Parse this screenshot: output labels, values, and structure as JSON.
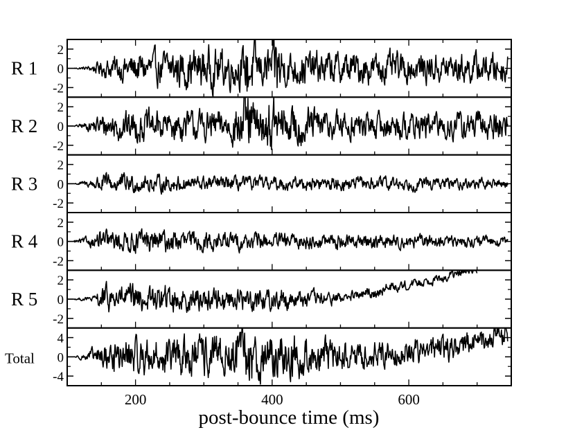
{
  "chart_data": {
    "type": "line",
    "xlabel": "post-bounce time (ms)",
    "xlim": [
      100,
      750
    ],
    "x_ticks": [
      200,
      400,
      600
    ],
    "x_minor_step": 50,
    "grid": false,
    "line_color": "#000000",
    "panels": [
      {
        "name": "R 1",
        "ylim": [
          -3,
          3
        ],
        "y_ticks": [
          -2,
          0,
          2
        ],
        "y_tick_labels": [
          "-2",
          "0",
          "2"
        ],
        "x": [
          110,
          130,
          150,
          170,
          200,
          230,
          260,
          280,
          300,
          320,
          340,
          360,
          363,
          380,
          400,
          405,
          420,
          450,
          480,
          500,
          530,
          560,
          600,
          640,
          680,
          720,
          745
        ],
        "amplitude": [
          0.03,
          0.15,
          0.55,
          0.85,
          1.05,
          1.1,
          1.3,
          1.4,
          1.45,
          1.4,
          1.35,
          1.3,
          2.8,
          1.3,
          1.4,
          2.6,
          1.2,
          1.2,
          1.1,
          1.1,
          1.1,
          1.05,
          1.0,
          1.0,
          1.0,
          1.0,
          1.0
        ],
        "trend": [
          0,
          0,
          0,
          0,
          0,
          0,
          0,
          0,
          0,
          0,
          0,
          0,
          0,
          0,
          0,
          0,
          0,
          0,
          0,
          0,
          0,
          0,
          0,
          0,
          0,
          0,
          0
        ]
      },
      {
        "name": "R 2",
        "ylim": [
          -3,
          3
        ],
        "y_ticks": [
          -2,
          0,
          2
        ],
        "y_tick_labels": [
          "-2",
          "0",
          "2"
        ],
        "x": [
          110,
          130,
          150,
          170,
          200,
          250,
          300,
          340,
          363,
          380,
          400,
          420,
          440,
          480,
          520,
          560,
          600,
          640,
          680,
          720,
          745
        ],
        "amplitude": [
          0.03,
          0.3,
          0.8,
          1.0,
          1.05,
          1.0,
          1.05,
          1.1,
          2.4,
          1.2,
          2.0,
          1.2,
          1.5,
          1.05,
          0.95,
          0.9,
          0.9,
          0.9,
          0.95,
          1.0,
          1.1
        ],
        "trend": [
          0,
          0,
          0,
          0,
          0,
          0,
          0,
          0,
          0,
          0,
          0,
          0,
          0,
          0,
          0,
          0,
          0,
          0,
          0,
          0,
          0
        ]
      },
      {
        "name": "R 3",
        "ylim": [
          -3,
          3
        ],
        "y_ticks": [
          -2,
          0,
          2
        ],
        "y_tick_labels": [
          "-2",
          "0",
          "2"
        ],
        "x": [
          110,
          130,
          150,
          170,
          200,
          250,
          300,
          400,
          500,
          600,
          700,
          745
        ],
        "amplitude": [
          0.03,
          0.25,
          0.65,
          0.7,
          0.6,
          0.55,
          0.5,
          0.45,
          0.45,
          0.45,
          0.35,
          0.3
        ],
        "trend": [
          0,
          0,
          0,
          0,
          0,
          0,
          0,
          0,
          0,
          0,
          0,
          0
        ]
      },
      {
        "name": "R 4",
        "ylim": [
          -3,
          3
        ],
        "y_ticks": [
          -2,
          0,
          2
        ],
        "y_tick_labels": [
          "-2",
          "0",
          "2"
        ],
        "x": [
          110,
          130,
          150,
          170,
          200,
          220,
          260,
          300,
          400,
          500,
          600,
          700,
          745
        ],
        "amplitude": [
          0.1,
          0.3,
          0.7,
          0.7,
          0.7,
          0.9,
          0.7,
          0.65,
          0.55,
          0.5,
          0.45,
          0.35,
          0.3
        ],
        "trend": [
          0,
          0,
          0,
          0,
          0,
          0,
          0,
          0,
          0,
          0,
          0,
          0,
          0
        ]
      },
      {
        "name": "R 5",
        "ylim": [
          -3,
          3
        ],
        "y_ticks": [
          -2,
          0,
          2
        ],
        "y_tick_labels": [
          "-2",
          "0",
          "2"
        ],
        "x": [
          110,
          140,
          150,
          160,
          200,
          250,
          300,
          350,
          400,
          450,
          480,
          500,
          520,
          550,
          580,
          600,
          620,
          650,
          670,
          690,
          700
        ],
        "amplitude": [
          0.05,
          0.2,
          0.9,
          0.9,
          0.9,
          0.9,
          0.8,
          0.8,
          0.8,
          0.6,
          0.45,
          0.4,
          0.35,
          0.4,
          0.35,
          0.3,
          0.3,
          0.3,
          0.3,
          0.3,
          0.3
        ],
        "trend": [
          0,
          0,
          0,
          0,
          0,
          0,
          0,
          0,
          0,
          0,
          0,
          0.1,
          0.3,
          0.7,
          1.3,
          1.5,
          1.8,
          2.2,
          2.6,
          2.9,
          3.0
        ]
      },
      {
        "name": "Total",
        "ylim": [
          -6,
          6
        ],
        "y_ticks": [
          -4,
          0,
          4
        ],
        "y_tick_labels": [
          "-4",
          "0",
          "4"
        ],
        "x": [
          110,
          130,
          150,
          170,
          200,
          250,
          300,
          340,
          363,
          400,
          430,
          460,
          500,
          540,
          580,
          620,
          660,
          700,
          730,
          745
        ],
        "amplitude": [
          0.05,
          0.6,
          1.8,
          2.2,
          2.4,
          2.6,
          2.8,
          3.0,
          4.6,
          2.8,
          3.6,
          2.4,
          2.0,
          1.8,
          1.7,
          1.7,
          1.8,
          1.8,
          1.6,
          1.6
        ],
        "trend": [
          0,
          0,
          0,
          0,
          0,
          0,
          0,
          0,
          0,
          0,
          0,
          0,
          0.1,
          0.4,
          0.8,
          1.3,
          2.0,
          3.0,
          4.0,
          4.6
        ]
      }
    ]
  }
}
